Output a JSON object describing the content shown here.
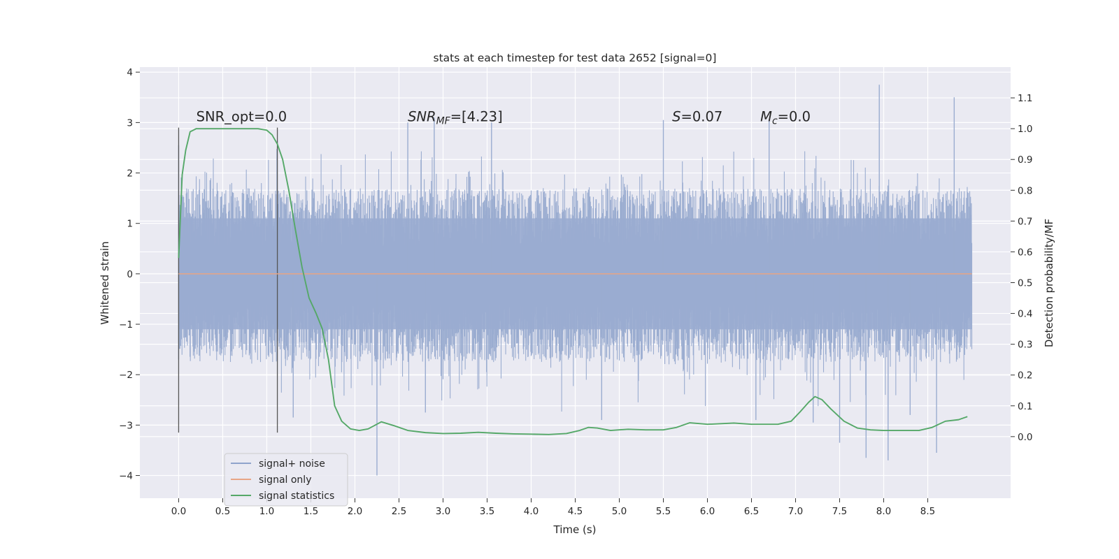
{
  "chart_data": {
    "type": "line",
    "title": "stats at each timestep for test data 2652 [signal=0]",
    "xlabel": "Time (s)",
    "ylabel": "Whitened strain",
    "y2label": "Detection probability/MF",
    "xlim": [
      -0.44,
      9.44
    ],
    "ylim": [
      -4.45,
      4.1
    ],
    "y2lim": [
      -0.2,
      1.2
    ],
    "x_ticks": [
      "0.0",
      "0.5",
      "1.0",
      "1.5",
      "2.0",
      "2.5",
      "3.0",
      "3.5",
      "4.0",
      "4.5",
      "5.0",
      "5.5",
      "6.0",
      "6.5",
      "7.0",
      "7.5",
      "8.0",
      "8.5"
    ],
    "y_ticks": [
      "4",
      "3",
      "2",
      "1",
      "0",
      "−1",
      "−2",
      "−3",
      "−4"
    ],
    "y2_ticks": [
      "1.1",
      "1.0",
      "0.9",
      "0.8",
      "0.7",
      "0.6",
      "0.5",
      "0.4",
      "0.3",
      "0.2",
      "0.1",
      "0.0"
    ],
    "grid": true,
    "legend_position": "lower-left",
    "colors": {
      "background": "#eaeaf2",
      "grid": "#ffffff",
      "noise": "#9aacd0",
      "signal": "#e8a585",
      "stats": "#55a868",
      "vline": "#555555"
    },
    "series": [
      {
        "name": "signal+ noise",
        "style": "dense noise trace",
        "x_range": [
          0.0,
          9.0
        ],
        "typical_range": [
          -1.7,
          1.7
        ],
        "spikes": [
          {
            "x": 0.0,
            "y": 2.55
          },
          {
            "x": 0.0,
            "y": -1.7
          },
          {
            "x": 2.25,
            "y": -4.0
          },
          {
            "x": 7.5,
            "y": -3.35
          },
          {
            "x": 7.8,
            "y": -3.65
          },
          {
            "x": 7.95,
            "y": 3.75
          },
          {
            "x": 8.05,
            "y": -3.7
          },
          {
            "x": 8.6,
            "y": -3.55
          },
          {
            "x": 8.8,
            "y": 3.5
          },
          {
            "x": 2.6,
            "y": 3.0
          },
          {
            "x": 2.9,
            "y": 3.1
          },
          {
            "x": 3.55,
            "y": 3.0
          },
          {
            "x": 5.5,
            "y": 3.05
          },
          {
            "x": 6.7,
            "y": 3.05
          },
          {
            "x": 1.3,
            "y": -2.85
          },
          {
            "x": 2.8,
            "y": -2.75
          },
          {
            "x": 4.8,
            "y": -2.9
          },
          {
            "x": 6.55,
            "y": -2.9
          },
          {
            "x": 7.2,
            "y": -2.95
          },
          {
            "x": 8.3,
            "y": -2.8
          }
        ]
      },
      {
        "name": "signal only",
        "x": [
          0.0,
          9.0
        ],
        "y": [
          0.0,
          0.0
        ]
      },
      {
        "name": "signal statistics",
        "axis": "right",
        "x": [
          0.0,
          0.04,
          0.08,
          0.13,
          0.2,
          0.3,
          0.5,
          0.7,
          0.9,
          1.0,
          1.06,
          1.12,
          1.18,
          1.25,
          1.32,
          1.4,
          1.48,
          1.56,
          1.63,
          1.7,
          1.77,
          1.85,
          1.95,
          2.05,
          2.15,
          2.3,
          2.45,
          2.6,
          2.8,
          3.0,
          3.2,
          3.4,
          3.6,
          3.8,
          4.0,
          4.2,
          4.4,
          4.55,
          4.65,
          4.75,
          4.9,
          5.1,
          5.3,
          5.5,
          5.65,
          5.8,
          6.0,
          6.3,
          6.5,
          6.8,
          6.95,
          7.05,
          7.15,
          7.22,
          7.3,
          7.4,
          7.55,
          7.7,
          7.85,
          8.0,
          8.2,
          8.4,
          8.55,
          8.7,
          8.85,
          8.95
        ],
        "y": [
          0.58,
          0.85,
          0.93,
          0.99,
          1.0,
          1.0,
          1.0,
          1.0,
          1.0,
          0.995,
          0.98,
          0.95,
          0.9,
          0.8,
          0.68,
          0.55,
          0.45,
          0.4,
          0.35,
          0.25,
          0.1,
          0.05,
          0.025,
          0.02,
          0.025,
          0.048,
          0.035,
          0.02,
          0.013,
          0.01,
          0.011,
          0.014,
          0.011,
          0.009,
          0.008,
          0.007,
          0.01,
          0.02,
          0.03,
          0.028,
          0.02,
          0.024,
          0.022,
          0.022,
          0.03,
          0.045,
          0.04,
          0.044,
          0.04,
          0.04,
          0.05,
          0.08,
          0.112,
          0.13,
          0.12,
          0.09,
          0.05,
          0.028,
          0.022,
          0.02,
          0.02,
          0.02,
          0.03,
          0.05,
          0.055,
          0.065
        ]
      }
    ],
    "vlines": [
      0.0,
      1.12
    ],
    "annotations": [
      {
        "text": "SNR_opt=0.0",
        "x": 0.2,
        "y": 3.0
      },
      {
        "text_main": "SNR",
        "text_sub": "MF",
        "text_rest": "=[4.23]",
        "x": 2.6,
        "y": 3.0
      },
      {
        "text_main": "S",
        "text_rest": "=0.07",
        "x": 5.6,
        "y": 3.0
      },
      {
        "text_main": "M",
        "text_sub": "c",
        "text_rest": "=0.0",
        "x": 6.6,
        "y": 3.0
      }
    ]
  }
}
